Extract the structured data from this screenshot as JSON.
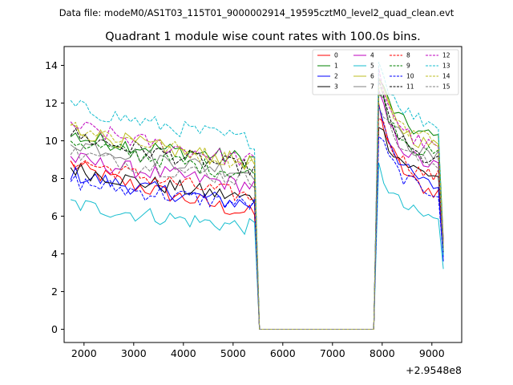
{
  "chart_data": {
    "type": "line",
    "suptitle": "Data file: modeM0/AS1T03_115T01_9000002914_19595cztM0_level2_quad_clean.evt",
    "title": "Quadrant 1 module wise count rates with 100.0s bins.",
    "xlabel": "",
    "ylabel": "",
    "x_offset_label": "+2.9548e8",
    "xlim": [
      1600,
      9600
    ],
    "ylim": [
      -0.7,
      15.0
    ],
    "xticks": [
      2000,
      3000,
      4000,
      5000,
      6000,
      7000,
      8000,
      9000
    ],
    "yticks": [
      0,
      2,
      4,
      6,
      8,
      10,
      12,
      14
    ],
    "legend_position": "upper-right",
    "legend_columns": 4,
    "x_start": 1730,
    "bin_width": 100,
    "gap_start": 5530,
    "gap_end": 7830,
    "second_segment_start": 7930,
    "second_segment_end": 9230,
    "series": [
      {
        "name": "0",
        "color": "#ff0000",
        "dash": "solid",
        "start1": 8.8,
        "end1": 6.1,
        "peak2": 11.8,
        "end2": 7.0,
        "last": 4.8
      },
      {
        "name": "1",
        "color": "#008000",
        "dash": "solid",
        "start1": 10.3,
        "end1": 9.0,
        "peak2": 13.4,
        "end2": 10.0,
        "last": 4.7
      },
      {
        "name": "2",
        "color": "#0000ff",
        "dash": "solid",
        "start1": 8.3,
        "end1": 6.6,
        "peak2": 12.0,
        "end2": 7.3,
        "last": 3.6
      },
      {
        "name": "3",
        "color": "#000000",
        "dash": "solid",
        "start1": 8.6,
        "end1": 6.9,
        "peak2": 11.0,
        "end2": 8.0,
        "last": 4.4
      },
      {
        "name": "4",
        "color": "#bf00bf",
        "dash": "solid",
        "start1": 9.1,
        "end1": 7.6,
        "peak2": 12.5,
        "end2": 8.4,
        "last": 4.1
      },
      {
        "name": "5",
        "color": "#17becf",
        "dash": "solid",
        "start1": 6.7,
        "end1": 5.4,
        "peak2": 8.6,
        "end2": 5.7,
        "last": 3.2
      },
      {
        "name": "6",
        "color": "#bcbd22",
        "dash": "solid",
        "start1": 10.7,
        "end1": 8.8,
        "peak2": 13.2,
        "end2": 9.5,
        "last": 4.2
      },
      {
        "name": "7",
        "color": "#808080",
        "dash": "solid",
        "start1": 10.0,
        "end1": 8.3,
        "peak2": 12.8,
        "end2": 8.9,
        "last": 4.5
      },
      {
        "name": "8",
        "color": "#ff0000",
        "dash": "dashed",
        "start1": 9.1,
        "end1": 7.0,
        "peak2": 11.5,
        "end2": 7.9,
        "last": 4.1
      },
      {
        "name": "9",
        "color": "#008000",
        "dash": "dashed",
        "start1": 10.1,
        "end1": 8.2,
        "peak2": 12.9,
        "end2": 9.0,
        "last": 4.0
      },
      {
        "name": "10",
        "color": "#0000ff",
        "dash": "dashed",
        "start1": 7.9,
        "end1": 6.6,
        "peak2": 10.4,
        "end2": 7.1,
        "last": 3.8
      },
      {
        "name": "11",
        "color": "#000000",
        "dash": "dashed",
        "start1": 10.4,
        "end1": 8.5,
        "peak2": 13.0,
        "end2": 8.6,
        "last": 4.4
      },
      {
        "name": "12",
        "color": "#bf00bf",
        "dash": "dashed",
        "start1": 10.9,
        "end1": 8.9,
        "peak2": 13.6,
        "end2": 9.4,
        "last": 4.6
      },
      {
        "name": "13",
        "color": "#17becf",
        "dash": "dashed",
        "start1": 11.9,
        "end1": 10.0,
        "peak2": 14.2,
        "end2": 10.7,
        "last": 3.9
      },
      {
        "name": "14",
        "color": "#bcbd22",
        "dash": "dashed",
        "start1": 10.9,
        "end1": 8.8,
        "peak2": 13.1,
        "end2": 9.9,
        "last": 4.4
      },
      {
        "name": "15",
        "color": "#808080",
        "dash": "dashed",
        "start1": 9.4,
        "end1": 7.9,
        "peak2": 12.2,
        "end2": 8.5,
        "last": 4.4
      }
    ]
  }
}
